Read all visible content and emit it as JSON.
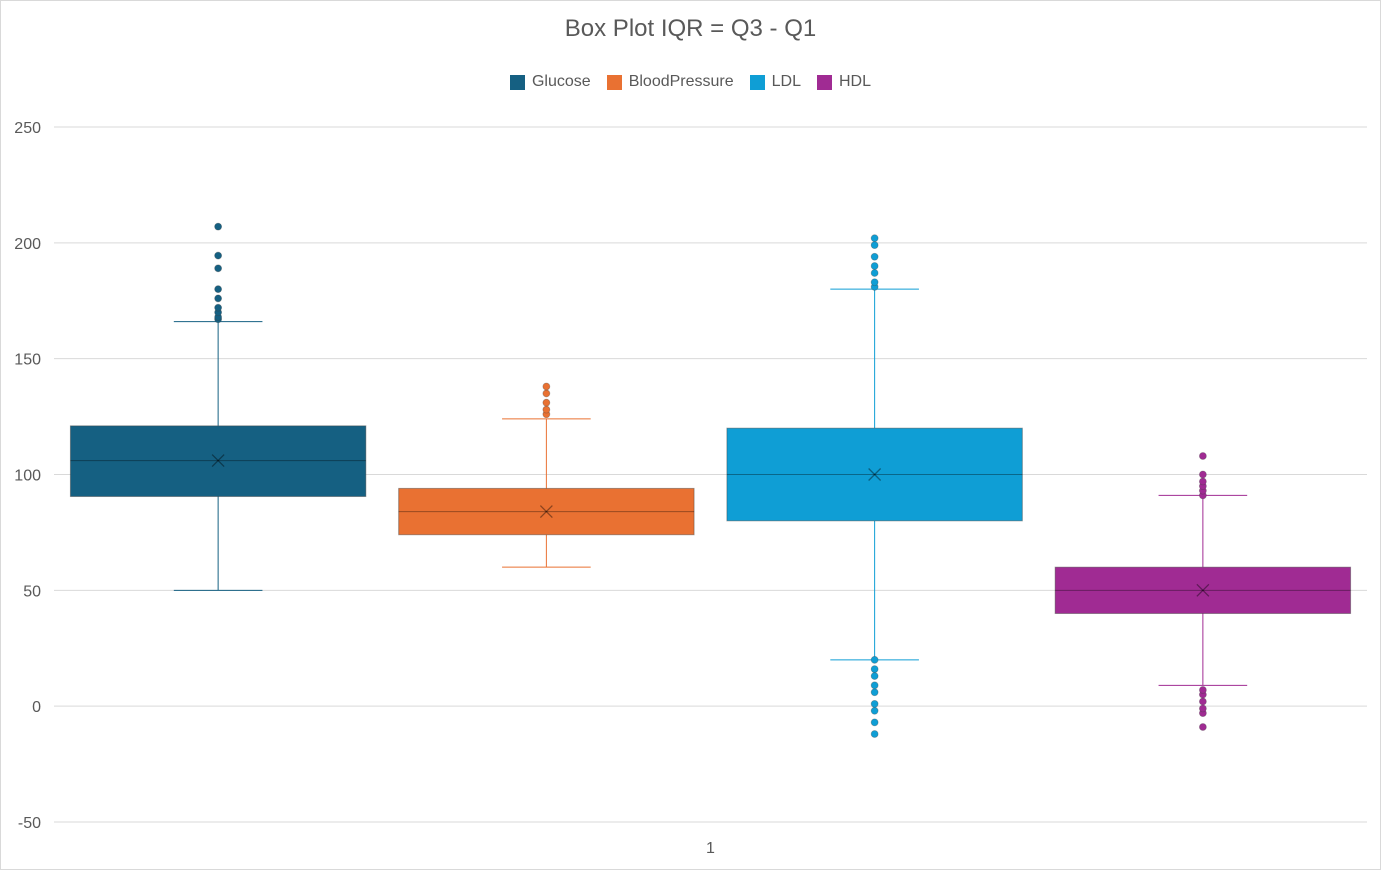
{
  "chart_data": {
    "type": "box",
    "title": "Box Plot IQR = Q3 - Q1",
    "categories": [
      "1"
    ],
    "ylim": [
      -50,
      250
    ],
    "yticks": [
      -50,
      0,
      50,
      100,
      150,
      200,
      250
    ],
    "grid": true,
    "legend_position": "top",
    "series": [
      {
        "name": "Glucose",
        "color": "#156082",
        "whisker_low": 50,
        "q1": 90.5,
        "median": 106,
        "q3": 121,
        "whisker_high": 166,
        "mean": 106,
        "outliers": [
          167,
          168,
          170,
          172,
          176,
          180,
          189,
          194.5,
          207
        ]
      },
      {
        "name": "BloodPressure",
        "color": "#E97132",
        "whisker_low": 60,
        "q1": 74,
        "median": 84,
        "q3": 94,
        "whisker_high": 124,
        "mean": 84,
        "outliers": [
          126,
          128,
          131,
          135,
          138
        ]
      },
      {
        "name": "LDL",
        "color": "#0F9ED5",
        "whisker_low": 20,
        "q1": 80,
        "median": 100,
        "q3": 120,
        "whisker_high": 180,
        "mean": 100,
        "outliers": [
          -12,
          -7,
          -2,
          1,
          6,
          9,
          13,
          16,
          20,
          181,
          183,
          187,
          190,
          194,
          199,
          202
        ]
      },
      {
        "name": "HDL",
        "color": "#A02B93",
        "whisker_low": 9,
        "q1": 40,
        "median": 50,
        "q3": 60,
        "whisker_high": 91,
        "mean": 50,
        "outliers": [
          -9,
          -3,
          -1,
          2,
          5,
          7,
          91,
          93,
          95,
          97,
          100,
          108
        ]
      }
    ]
  }
}
